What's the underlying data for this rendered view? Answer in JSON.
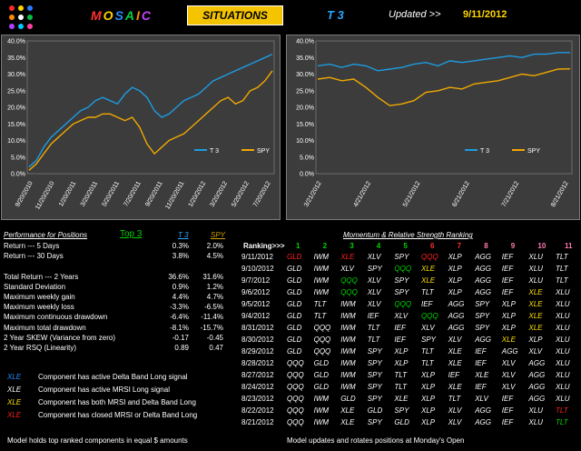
{
  "header": {
    "brand": "MOSAIC",
    "situations": "SITUATIONS",
    "title": "T 3",
    "updated_label": "Updated >>",
    "updated_date": "9/11/2012"
  },
  "colors": {
    "t3": "#1e9be0",
    "spy": "#f0a800"
  },
  "chart_data": [
    {
      "type": "line",
      "yticks": [
        "40.0%",
        "35.0%",
        "30.0%",
        "25.0%",
        "20.0%",
        "15.0%",
        "10.0%",
        "5.0%",
        "0.0%"
      ],
      "ylim": [
        0,
        40
      ],
      "xticks": [
        "9/20/2010",
        "11/20/2010",
        "1/20/2011",
        "3/20/2011",
        "5/20/2011",
        "7/20/2011",
        "9/20/2011",
        "11/20/2011",
        "1/20/2012",
        "3/20/2012",
        "5/20/2012",
        "7/20/2012"
      ],
      "legend": [
        "T 3",
        "SPY"
      ],
      "series": [
        {
          "name": "T 3",
          "values": [
            2,
            4,
            8,
            11,
            13,
            15,
            17,
            19,
            20,
            22,
            23,
            22,
            21,
            24,
            26,
            25,
            23,
            19,
            17,
            18,
            20,
            22,
            23,
            24,
            26,
            28,
            29,
            30,
            31,
            32,
            33,
            34,
            35,
            36
          ]
        },
        {
          "name": "SPY",
          "values": [
            1,
            3,
            6,
            9,
            11,
            13,
            15,
            16,
            17,
            17,
            18,
            18,
            17,
            16,
            17,
            14,
            9,
            6,
            8,
            10,
            11,
            12,
            14,
            16,
            18,
            20,
            22,
            23,
            21,
            22,
            25,
            26,
            28,
            31
          ]
        }
      ]
    },
    {
      "type": "line",
      "yticks": [
        "40.0%",
        "35.0%",
        "30.0%",
        "25.0%",
        "20.0%",
        "15.0%",
        "10.0%",
        "5.0%",
        "0.0%"
      ],
      "ylim": [
        0,
        40
      ],
      "xticks": [
        "3/21/2012",
        "4/21/2012",
        "5/21/2012",
        "6/21/2012",
        "7/21/2012",
        "8/21/2012"
      ],
      "legend": [
        "T 3",
        "SPY"
      ],
      "series": [
        {
          "name": "T 3",
          "values": [
            32.5,
            33,
            32,
            33,
            32.5,
            31,
            31.5,
            32,
            33,
            33.5,
            32.5,
            34,
            33.5,
            34,
            34.5,
            35,
            35.5,
            35,
            36,
            36,
            36.5,
            36.5
          ]
        },
        {
          "name": "SPY",
          "values": [
            28.5,
            29,
            28,
            28.5,
            26,
            23,
            20.5,
            21,
            22,
            24.5,
            25,
            26,
            25.5,
            27,
            27.5,
            28,
            29,
            30,
            29.5,
            30.5,
            31.5,
            31.6
          ]
        }
      ]
    }
  ],
  "performance": {
    "title": "Performance for Positions",
    "top_label": "Top  3",
    "col_t3": "T 3",
    "col_spy": "SPY",
    "rows": [
      {
        "label": "Return --- 5 Days",
        "t3": "0.3%",
        "spy": "2.0%"
      },
      {
        "label": "Return --- 30 Days",
        "t3": "3.8%",
        "spy": "4.5%"
      },
      {
        "label": "",
        "t3": "",
        "spy": ""
      },
      {
        "label": "Total Return --- 2 Years",
        "t3": "36.6%",
        "spy": "31.6%"
      },
      {
        "label": "Standard Deviation",
        "t3": "0.9%",
        "spy": "1.2%"
      },
      {
        "label": "Maximum weekly gain",
        "t3": "4.4%",
        "spy": "4.7%"
      },
      {
        "label": "Maximum weekly loss",
        "t3": "-3.3%",
        "spy": "-6.5%"
      },
      {
        "label": "Maximum continuous drawdown",
        "t3": "-6.4%",
        "spy": "-11.4%"
      },
      {
        "label": "Maximum total drawdown",
        "t3": "-8.1%",
        "spy": "-15.7%"
      },
      {
        "label": "2 Year SKEW  (Variance from zero)",
        "t3": "-0.17",
        "spy": "-0.45"
      },
      {
        "label": "2 Year RSQ  (Linearity)",
        "t3": "0.89",
        "spy": "0.47"
      }
    ]
  },
  "legend_notes": [
    {
      "code": "XLE",
      "color": "#2a8cff",
      "text": "Component has active Delta Band Long signal"
    },
    {
      "code": "XLE",
      "color": "#ffffff",
      "text": "Component has active MRSI Long signal"
    },
    {
      "code": "XLE",
      "color": "#ffe000",
      "text": "Component has both MRSI and  Delta Band Long"
    },
    {
      "code": "XLE",
      "color": "#ff2020",
      "text": "Component has closed MRSI or Delta Band Long"
    }
  ],
  "ranking": {
    "title": "Momentum & Relative Strength Ranking",
    "header_label": "Ranking>>>",
    "columns": [
      {
        "n": "1",
        "color": "#00d400"
      },
      {
        "n": "2",
        "color": "#00d400"
      },
      {
        "n": "3",
        "color": "#00d400"
      },
      {
        "n": "4",
        "color": "#00d400"
      },
      {
        "n": "5",
        "color": "#00d400"
      },
      {
        "n": "6",
        "color": "#ff3030"
      },
      {
        "n": "7",
        "color": "#ff3030"
      },
      {
        "n": "8",
        "color": "#ff7ab0"
      },
      {
        "n": "9",
        "color": "#ff7ab0"
      },
      {
        "n": "10",
        "color": "#ff7ab0"
      },
      {
        "n": "11",
        "color": "#ff7ab0"
      }
    ],
    "rows": [
      {
        "date": "9/11/2012",
        "cells": [
          [
            "GLD",
            "r"
          ],
          [
            "IWM",
            "w"
          ],
          [
            "XLE",
            "r"
          ],
          [
            "XLV",
            "w"
          ],
          [
            "SPY",
            "w"
          ],
          [
            "QQQ",
            "r"
          ],
          [
            "XLP",
            "w"
          ],
          [
            "AGG",
            "w"
          ],
          [
            "IEF",
            "w"
          ],
          [
            "XLU",
            "w"
          ],
          [
            "TLT",
            "w"
          ]
        ]
      },
      {
        "date": "9/10/2012",
        "cells": [
          [
            "GLD",
            "w"
          ],
          [
            "IWM",
            "w"
          ],
          [
            "XLV",
            "w"
          ],
          [
            "SPY",
            "w"
          ],
          [
            "QQQ",
            "g"
          ],
          [
            "XLE",
            "y"
          ],
          [
            "XLP",
            "w"
          ],
          [
            "AGG",
            "w"
          ],
          [
            "IEF",
            "w"
          ],
          [
            "XLU",
            "w"
          ],
          [
            "TLT",
            "w"
          ]
        ]
      },
      {
        "date": "9/7/2012",
        "cells": [
          [
            "GLD",
            "w"
          ],
          [
            "IWM",
            "w"
          ],
          [
            "QQQ",
            "g"
          ],
          [
            "XLV",
            "w"
          ],
          [
            "SPY",
            "w"
          ],
          [
            "XLE",
            "y"
          ],
          [
            "XLP",
            "w"
          ],
          [
            "AGG",
            "w"
          ],
          [
            "IEF",
            "w"
          ],
          [
            "XLU",
            "w"
          ],
          [
            "TLT",
            "w"
          ]
        ]
      },
      {
        "date": "9/6/2012",
        "cells": [
          [
            "GLD",
            "w"
          ],
          [
            "IWM",
            "w"
          ],
          [
            "QQQ",
            "g"
          ],
          [
            "XLV",
            "w"
          ],
          [
            "SPY",
            "w"
          ],
          [
            "TLT",
            "w"
          ],
          [
            "XLP",
            "w"
          ],
          [
            "AGG",
            "w"
          ],
          [
            "IEF",
            "w"
          ],
          [
            "XLE",
            "y"
          ],
          [
            "XLU",
            "w"
          ]
        ]
      },
      {
        "date": "9/5/2012",
        "cells": [
          [
            "GLD",
            "w"
          ],
          [
            "TLT",
            "w"
          ],
          [
            "IWM",
            "w"
          ],
          [
            "XLV",
            "w"
          ],
          [
            "QQQ",
            "g"
          ],
          [
            "IEF",
            "w"
          ],
          [
            "AGG",
            "w"
          ],
          [
            "SPY",
            "w"
          ],
          [
            "XLP",
            "w"
          ],
          [
            "XLE",
            "y"
          ],
          [
            "XLU",
            "w"
          ]
        ]
      },
      {
        "date": "9/4/2012",
        "cells": [
          [
            "GLD",
            "w"
          ],
          [
            "TLT",
            "w"
          ],
          [
            "IWM",
            "w"
          ],
          [
            "IEF",
            "w"
          ],
          [
            "XLV",
            "w"
          ],
          [
            "QQQ",
            "g"
          ],
          [
            "AGG",
            "w"
          ],
          [
            "SPY",
            "w"
          ],
          [
            "XLP",
            "w"
          ],
          [
            "XLE",
            "y"
          ],
          [
            "XLU",
            "w"
          ]
        ]
      },
      {
        "date": "8/31/2012",
        "cells": [
          [
            "GLD",
            "w"
          ],
          [
            "QQQ",
            "w"
          ],
          [
            "IWM",
            "w"
          ],
          [
            "TLT",
            "w"
          ],
          [
            "IEF",
            "w"
          ],
          [
            "XLV",
            "w"
          ],
          [
            "AGG",
            "w"
          ],
          [
            "SPY",
            "w"
          ],
          [
            "XLP",
            "w"
          ],
          [
            "XLE",
            "y"
          ],
          [
            "XLU",
            "w"
          ]
        ]
      },
      {
        "date": "8/30/2012",
        "cells": [
          [
            "GLD",
            "w"
          ],
          [
            "QQQ",
            "w"
          ],
          [
            "IWM",
            "w"
          ],
          [
            "TLT",
            "w"
          ],
          [
            "IEF",
            "w"
          ],
          [
            "SPY",
            "w"
          ],
          [
            "XLV",
            "w"
          ],
          [
            "AGG",
            "w"
          ],
          [
            "XLE",
            "y"
          ],
          [
            "XLP",
            "w"
          ],
          [
            "XLU",
            "w"
          ]
        ]
      },
      {
        "date": "8/29/2012",
        "cells": [
          [
            "GLD",
            "w"
          ],
          [
            "QQQ",
            "w"
          ],
          [
            "IWM",
            "w"
          ],
          [
            "SPY",
            "w"
          ],
          [
            "XLP",
            "w"
          ],
          [
            "TLT",
            "w"
          ],
          [
            "XLE",
            "w"
          ],
          [
            "IEF",
            "w"
          ],
          [
            "AGG",
            "w"
          ],
          [
            "XLV",
            "w"
          ],
          [
            "XLU",
            "w"
          ]
        ]
      },
      {
        "date": "8/28/2012",
        "cells": [
          [
            "QQQ",
            "w"
          ],
          [
            "GLD",
            "w"
          ],
          [
            "IWM",
            "w"
          ],
          [
            "SPY",
            "w"
          ],
          [
            "XLP",
            "w"
          ],
          [
            "TLT",
            "w"
          ],
          [
            "XLE",
            "w"
          ],
          [
            "IEF",
            "w"
          ],
          [
            "XLV",
            "w"
          ],
          [
            "AGG",
            "w"
          ],
          [
            "XLU",
            "w"
          ]
        ]
      },
      {
        "date": "8/27/2012",
        "cells": [
          [
            "QQQ",
            "w"
          ],
          [
            "GLD",
            "w"
          ],
          [
            "IWM",
            "w"
          ],
          [
            "SPY",
            "w"
          ],
          [
            "TLT",
            "w"
          ],
          [
            "XLP",
            "w"
          ],
          [
            "IEF",
            "w"
          ],
          [
            "XLE",
            "w"
          ],
          [
            "XLV",
            "w"
          ],
          [
            "AGG",
            "w"
          ],
          [
            "XLU",
            "w"
          ]
        ]
      },
      {
        "date": "8/24/2012",
        "cells": [
          [
            "QQQ",
            "w"
          ],
          [
            "GLD",
            "w"
          ],
          [
            "IWM",
            "w"
          ],
          [
            "SPY",
            "w"
          ],
          [
            "TLT",
            "w"
          ],
          [
            "XLP",
            "w"
          ],
          [
            "XLE",
            "w"
          ],
          [
            "IEF",
            "w"
          ],
          [
            "XLV",
            "w"
          ],
          [
            "AGG",
            "w"
          ],
          [
            "XLU",
            "w"
          ]
        ]
      },
      {
        "date": "8/23/2012",
        "cells": [
          [
            "QQQ",
            "w"
          ],
          [
            "IWM",
            "w"
          ],
          [
            "GLD",
            "w"
          ],
          [
            "SPY",
            "w"
          ],
          [
            "XLE",
            "w"
          ],
          [
            "XLP",
            "w"
          ],
          [
            "TLT",
            "w"
          ],
          [
            "XLV",
            "w"
          ],
          [
            "IEF",
            "w"
          ],
          [
            "AGG",
            "w"
          ],
          [
            "XLU",
            "w"
          ]
        ]
      },
      {
        "date": "8/22/2012",
        "cells": [
          [
            "QQQ",
            "w"
          ],
          [
            "IWM",
            "w"
          ],
          [
            "XLE",
            "w"
          ],
          [
            "GLD",
            "w"
          ],
          [
            "SPY",
            "w"
          ],
          [
            "XLP",
            "w"
          ],
          [
            "XLV",
            "w"
          ],
          [
            "AGG",
            "w"
          ],
          [
            "IEF",
            "w"
          ],
          [
            "XLU",
            "w"
          ],
          [
            "TLT",
            "r"
          ]
        ]
      },
      {
        "date": "8/21/2012",
        "cells": [
          [
            "QQQ",
            "w"
          ],
          [
            "IWM",
            "w"
          ],
          [
            "XLE",
            "w"
          ],
          [
            "SPY",
            "w"
          ],
          [
            "GLD",
            "w"
          ],
          [
            "XLP",
            "w"
          ],
          [
            "XLV",
            "w"
          ],
          [
            "AGG",
            "w"
          ],
          [
            "IEF",
            "w"
          ],
          [
            "XLU",
            "w"
          ],
          [
            "TLT",
            "g"
          ]
        ]
      }
    ]
  },
  "footer": {
    "left": "Model holds top ranked  components in equal  $ amounts",
    "right": "Model updates and rotates positions at Monday's Open"
  }
}
